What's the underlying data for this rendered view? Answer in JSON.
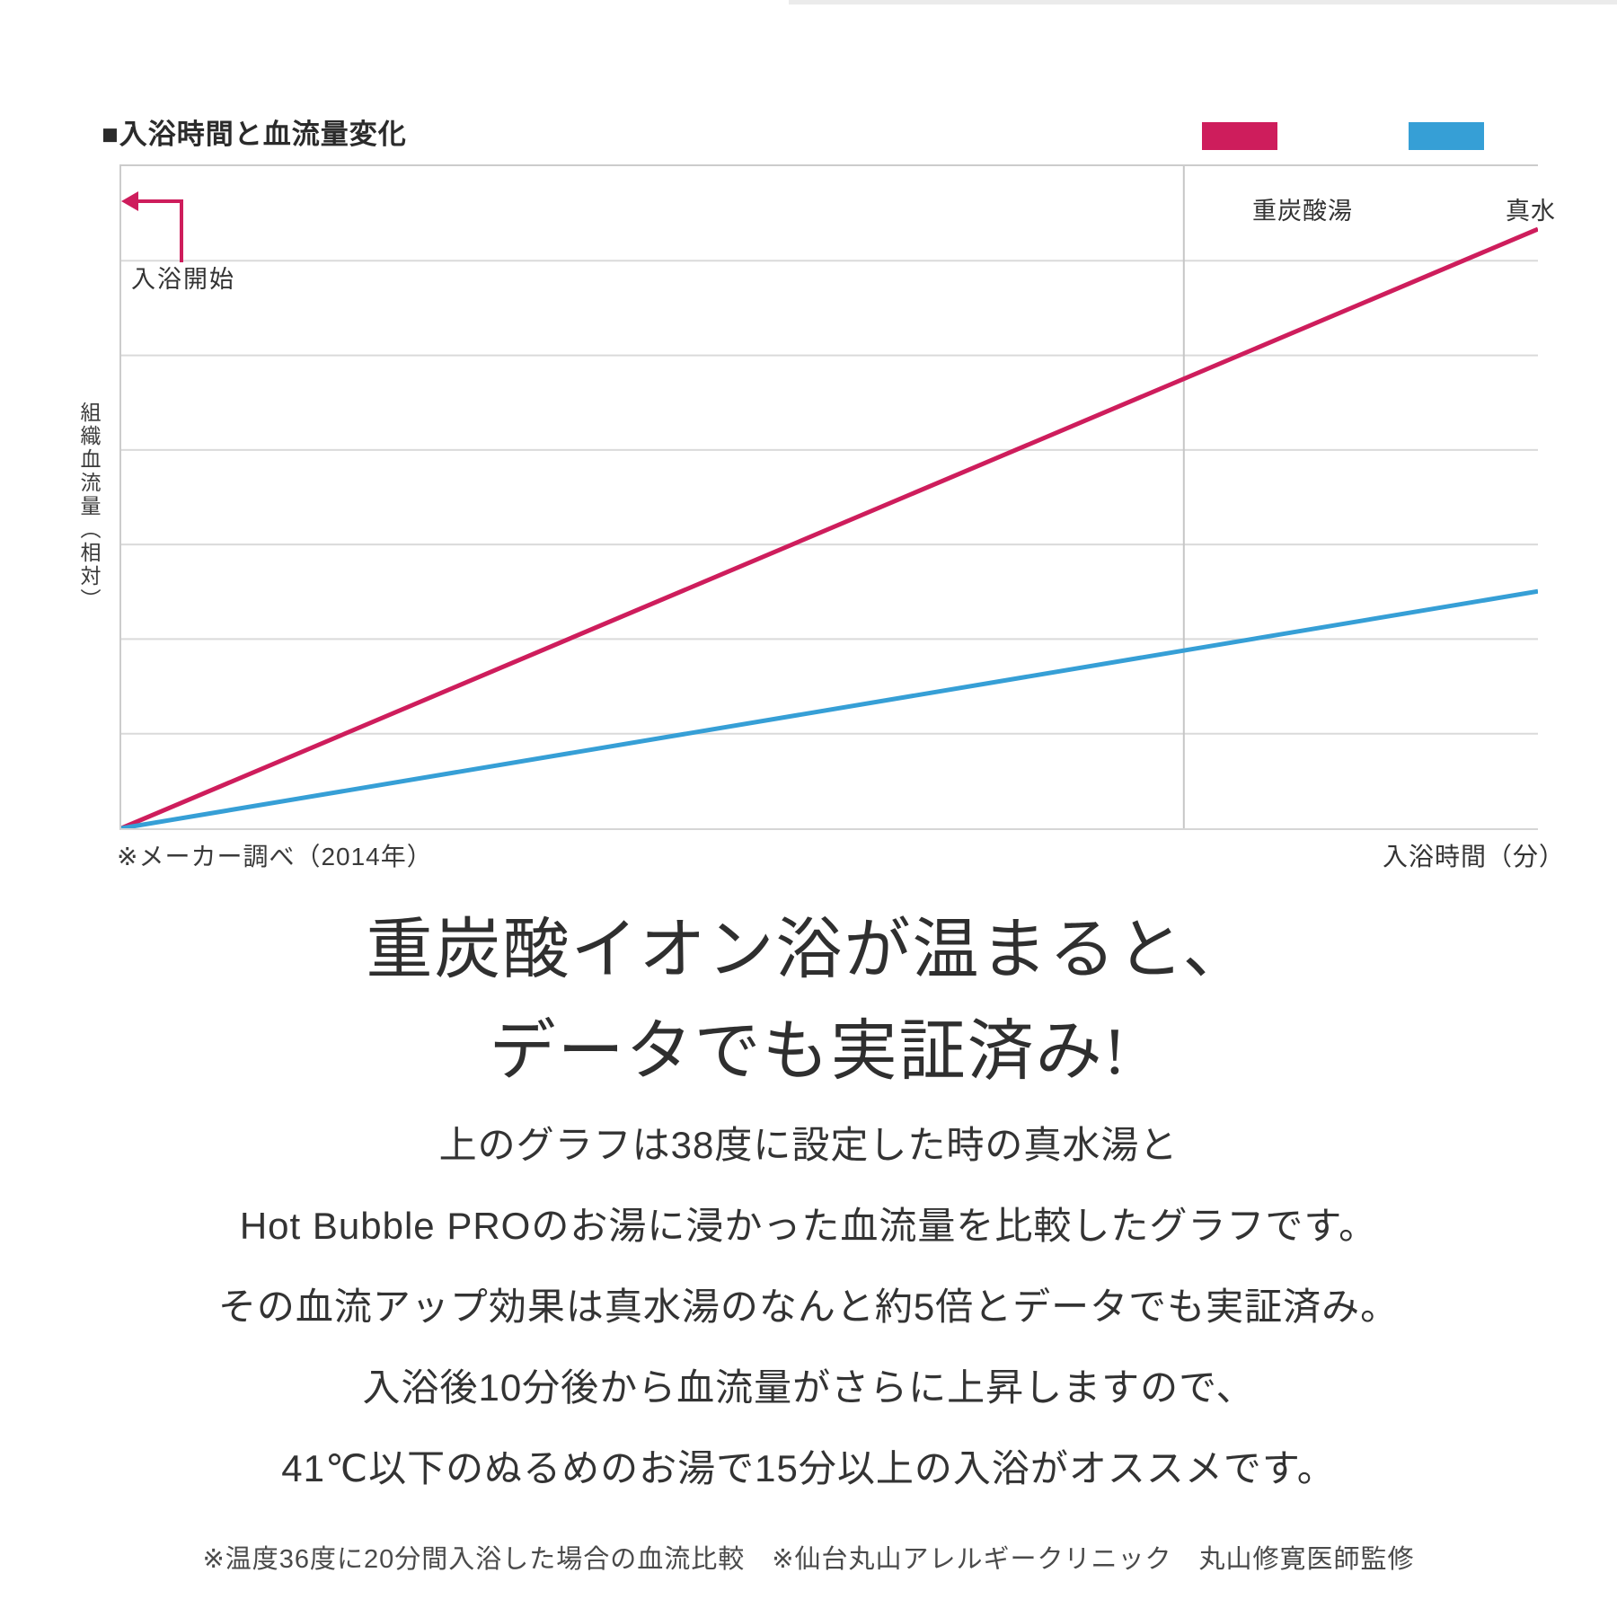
{
  "chart": {
    "title": "■入浴時間と血流量変化",
    "y_axis_label": "組織血流量（相対）",
    "x_axis_label": "入浴時間（分）",
    "annotation_bath_start": "入浴開始",
    "source_note": "※メーカー調べ（2014年）"
  },
  "chart_data": {
    "type": "line",
    "title": "入浴時間と血流量変化",
    "xlabel": "入浴時間（分）",
    "ylabel": "組織血流量（相対）",
    "x_minutes_hint": [
      0,
      20
    ],
    "ylim": [
      0,
      1
    ],
    "grid": true,
    "grid_divisions": 7,
    "divider_x_fraction": 0.75,
    "legend_position": "top-right",
    "series": [
      {
        "name": "重炭酸湯",
        "color": "#ce1d5c",
        "points": [
          [
            0,
            0
          ],
          [
            1,
            0.905
          ]
        ]
      },
      {
        "name": "真水",
        "color": "#369fd6",
        "points": [
          [
            0,
            0
          ],
          [
            1,
            0.358
          ]
        ]
      }
    ]
  },
  "heading": {
    "line1": "重炭酸イオン浴が温まると、",
    "line2": "データでも実証済み!"
  },
  "body": {
    "lines": [
      "上のグラフは38度に設定した時の真水湯と",
      "Hot Bubble PROのお湯に浸かった血流量を比較したグラフです。",
      "その血流アップ効果は真水湯のなんと約5倍とデータでも実証済み。",
      "入浴後10分後から血流量がさらに上昇しますので、",
      "41℃以下のぬるめのお湯で15分以上の入浴がオススメです。"
    ]
  },
  "footer": {
    "note": "※温度36度に20分間入浴した場合の血流比較　※仙台丸山アレルギークリニック　丸山修寛医師監修"
  }
}
